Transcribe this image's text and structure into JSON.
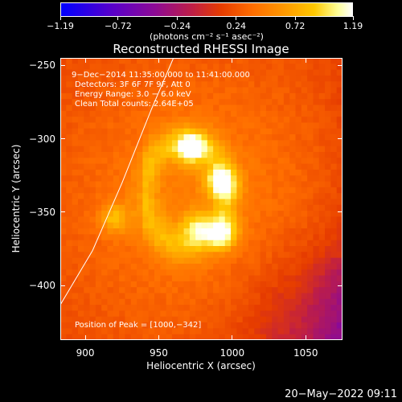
{
  "colorbar": {
    "ticks": [
      "−1.19",
      "−0.72",
      "−0.24",
      "0.24",
      "0.72",
      "1.19"
    ],
    "tick_values": [
      -1.19,
      -0.72,
      -0.24,
      0.24,
      0.72,
      1.19
    ],
    "range": [
      -1.19,
      1.19
    ],
    "unit": "(photons cm⁻² s⁻¹ asec⁻²)",
    "colormap": [
      "#0000ff",
      "#8c0a96",
      "#e63c00",
      "#ff9600",
      "#ffff96",
      "#ffffff"
    ]
  },
  "chart_data": {
    "type": "heatmap",
    "title": "Reconstructed RHESSI Image",
    "xlabel": "Heliocentric X (arcsec)",
    "ylabel": "Heliocentric Y (arcsec)",
    "xlim": [
      883,
      1075
    ],
    "ylim": [
      -437,
      -245
    ],
    "xticks": [
      900,
      950,
      1000,
      1050
    ],
    "yticks": [
      -250,
      -300,
      -350,
      -400
    ],
    "xtick_labels": [
      "900",
      "950",
      "1000",
      "1050"
    ],
    "ytick_labels": [
      "−250",
      "−300",
      "−350",
      "−400"
    ],
    "annotations": {
      "time": "9−Dec−2014 11:35:00.000 to 11:41:00.000",
      "detectors": "Detectors: 3F 6F 7F 9F, Att 0",
      "energy": "Energy Range: 3.0 − 6.0 keV",
      "clean": "Clean     Total counts: 2.64E+05",
      "peak": "Position of Peak = [1000,−342]"
    },
    "peak": [
      1000,
      -342
    ],
    "sources": [
      {
        "x": 972,
        "y": -307,
        "intensity": 1.0
      },
      {
        "x": 992,
        "y": -330,
        "intensity": 0.95
      },
      {
        "x": 994,
        "y": -365,
        "intensity": 0.9
      },
      {
        "x": 975,
        "y": -360,
        "intensity": 0.7
      },
      {
        "x": 920,
        "y": -354,
        "intensity": 0.65
      }
    ],
    "limb_curve": [
      [
        883,
        -413
      ],
      [
        905,
        -376
      ],
      [
        925,
        -330
      ],
      [
        945,
        -280
      ],
      [
        960,
        -245
      ]
    ]
  },
  "footer": {
    "timestamp": "20−May−2022 09:11"
  }
}
